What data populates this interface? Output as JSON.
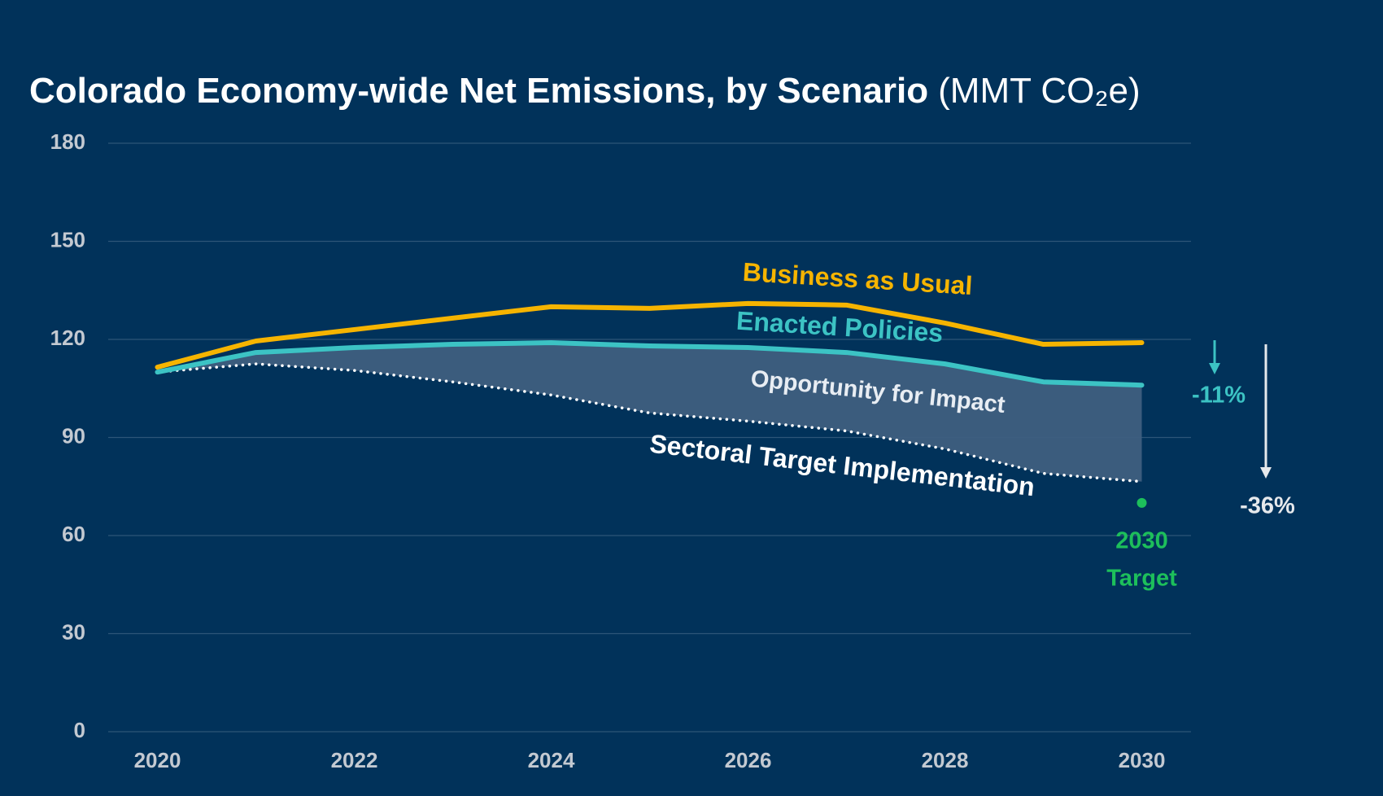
{
  "chart_data": {
    "type": "line",
    "title": "Colorado Economy-wide Net Emissions, by Scenario",
    "title_unit": "(MMT CO₂e)",
    "x": [
      2020,
      2021,
      2022,
      2023,
      2024,
      2025,
      2026,
      2027,
      2028,
      2029,
      2030
    ],
    "xlim": [
      2019.5,
      2030.5
    ],
    "xticks": [
      2020,
      2022,
      2024,
      2026,
      2028,
      2030
    ],
    "ylim": [
      0,
      180
    ],
    "yticks": [
      0,
      30,
      60,
      90,
      120,
      150,
      180
    ],
    "grid": true,
    "series": [
      {
        "name": "Business as Usual",
        "color": "#f6b400",
        "style": "solid",
        "values": [
          111.5,
          119.5,
          123,
          126.5,
          130,
          129.5,
          131,
          130.5,
          125,
          118.5,
          119
        ]
      },
      {
        "name": "Enacted Policies",
        "color": "#3cc3c4",
        "style": "solid",
        "values": [
          110,
          116,
          117.5,
          118.5,
          119,
          118,
          117.5,
          116,
          112.5,
          107,
          106
        ]
      },
      {
        "name": "Sectoral Target Implementation",
        "color": "#ffffff",
        "style": "dotted",
        "values": [
          110,
          112.5,
          110.5,
          107,
          103,
          97.5,
          95,
          92,
          86.5,
          79,
          76.5
        ]
      }
    ],
    "fill_between": {
      "label": "Opportunity for Impact",
      "color": "#3e5f80"
    },
    "target": {
      "x": 2030,
      "value": 70,
      "color": "#1dbf5b",
      "label_lines": [
        "2030",
        "Target"
      ]
    },
    "reductions": [
      {
        "label": "-11%",
        "color": "#3cc3c4"
      },
      {
        "label": "-36%",
        "color": "#e6e9ec"
      }
    ]
  }
}
